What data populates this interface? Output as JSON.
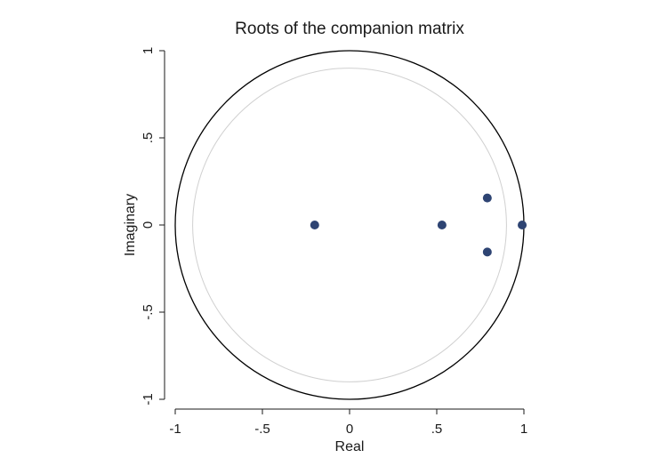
{
  "chart_data": {
    "type": "scatter",
    "title": "Roots of the companion matrix",
    "xlabel": "Real",
    "ylabel": "Imaginary",
    "xlim": [
      -1.05,
      1.05
    ],
    "ylim": [
      -1.05,
      1.05
    ],
    "xticks": [
      {
        "value": -1,
        "label": "-1"
      },
      {
        "value": -0.5,
        "label": "-.5"
      },
      {
        "value": 0,
        "label": "0"
      },
      {
        "value": 0.5,
        "label": ".5"
      },
      {
        "value": 1,
        "label": "1"
      }
    ],
    "yticks": [
      {
        "value": -1,
        "label": "-1"
      },
      {
        "value": -0.5,
        "label": "-.5"
      },
      {
        "value": 0,
        "label": "0"
      },
      {
        "value": 0.5,
        "label": ".5"
      },
      {
        "value": 1,
        "label": "1"
      }
    ],
    "unit_circle_radius": 1,
    "reference_circle_radius": 0.9,
    "grid": false,
    "points": [
      {
        "x": -0.2,
        "y": 0
      },
      {
        "x": 0.53,
        "y": 0
      },
      {
        "x": 0.79,
        "y": 0.155
      },
      {
        "x": 0.79,
        "y": -0.155
      },
      {
        "x": 0.99,
        "y": 0
      }
    ],
    "colors": {
      "marker": "#2e4473",
      "unit_circle": "#000000",
      "reference_circle": "#d0d0d0",
      "text": "#1a1a1a"
    }
  }
}
